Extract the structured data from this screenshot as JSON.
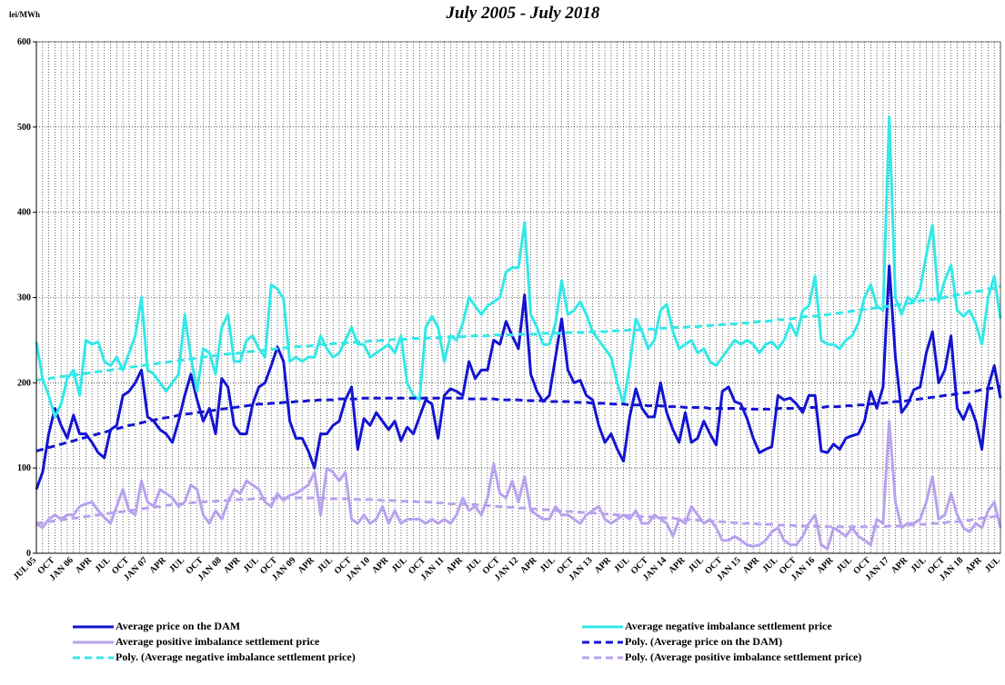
{
  "chart_data": {
    "type": "line",
    "title": "July 2005 - July 2018",
    "y_label": "lei/MWh",
    "categories": [
      "JUL 05",
      null,
      null,
      "OCT",
      null,
      null,
      "JAN 06",
      null,
      null,
      "APR",
      null,
      null,
      "JUL",
      null,
      null,
      "OCT",
      null,
      null,
      "JAN 07",
      null,
      null,
      "APR",
      null,
      null,
      "JUL",
      null,
      null,
      "OCT",
      null,
      null,
      "JAN 08",
      null,
      null,
      "APR",
      null,
      null,
      "JUL",
      null,
      null,
      "OCT",
      null,
      null,
      "JAN 09",
      null,
      null,
      "APR",
      null,
      null,
      "JUL",
      null,
      null,
      "OCT",
      null,
      null,
      "JAN 10",
      null,
      null,
      "APR",
      null,
      null,
      "JUL",
      null,
      null,
      "OCT",
      null,
      null,
      "JAN 11",
      null,
      null,
      "APR",
      null,
      null,
      "JUL",
      null,
      null,
      "OCT",
      null,
      null,
      "JAN 12",
      null,
      null,
      "APR",
      null,
      null,
      "JUL",
      null,
      null,
      "OCT",
      null,
      null,
      "JAN 13",
      null,
      null,
      "APR",
      null,
      null,
      "JUL",
      null,
      null,
      "OCT",
      null,
      null,
      "JAN 14",
      null,
      null,
      "APR",
      null,
      null,
      "JUL",
      null,
      null,
      "OCT",
      null,
      null,
      "JAN 15",
      null,
      null,
      "APR",
      null,
      null,
      "JUL",
      null,
      null,
      "OCT",
      null,
      null,
      "JAN 16",
      null,
      null,
      "APR",
      null,
      null,
      "JUL",
      null,
      null,
      "OCT",
      null,
      null,
      "JAN 17",
      null,
      null,
      "APR",
      null,
      null,
      "JUL",
      null,
      null,
      "OCT",
      null,
      null,
      "JAN 18",
      null,
      null,
      "APR",
      null,
      null,
      "JUL"
    ],
    "ylim": [
      0,
      600
    ],
    "yticks": [
      0,
      100,
      200,
      300,
      400,
      500,
      600
    ],
    "grid": true,
    "legend": "bottom",
    "series": [
      {
        "name": "Average price on the DAM",
        "color": "#1414d2",
        "style": "solid",
        "values": [
          75,
          95,
          140,
          170,
          150,
          135,
          162,
          140,
          140,
          130,
          118,
          112,
          145,
          150,
          185,
          190,
          200,
          215,
          160,
          155,
          145,
          140,
          130,
          155,
          185,
          210,
          180,
          155,
          170,
          140,
          205,
          195,
          150,
          140,
          140,
          175,
          195,
          200,
          220,
          242,
          225,
          155,
          135,
          135,
          120,
          100,
          140,
          140,
          150,
          155,
          180,
          195,
          122,
          158,
          150,
          165,
          155,
          145,
          155,
          132,
          148,
          140,
          160,
          180,
          175,
          135,
          185,
          193,
          190,
          185,
          225,
          205,
          215,
          215,
          250,
          245,
          272,
          255,
          240,
          303,
          210,
          190,
          178,
          185,
          230,
          275,
          215,
          200,
          203,
          185,
          180,
          150,
          130,
          140,
          122,
          108,
          160,
          193,
          170,
          160,
          160,
          200,
          165,
          145,
          130,
          165,
          130,
          135,
          155,
          140,
          127,
          190,
          195,
          178,
          175,
          158,
          135,
          118,
          122,
          125,
          185,
          180,
          182,
          175,
          165,
          185,
          185,
          120,
          118,
          128,
          122,
          135,
          138,
          140,
          155,
          190,
          170,
          195,
          337,
          230,
          165,
          175,
          192,
          195,
          235,
          260,
          200,
          215,
          255,
          170,
          157,
          175,
          155,
          122,
          195,
          220,
          182
        ]
      },
      {
        "name": "Average negative imbalance settlement price",
        "color": "#33e8e8",
        "style": "solid",
        "values": [
          248,
          205,
          185,
          160,
          175,
          205,
          215,
          185,
          250,
          245,
          248,
          225,
          220,
          230,
          215,
          235,
          255,
          300,
          215,
          210,
          200,
          190,
          200,
          210,
          280,
          230,
          190,
          240,
          235,
          210,
          265,
          280,
          225,
          225,
          250,
          255,
          240,
          230,
          315,
          310,
          298,
          225,
          230,
          225,
          230,
          230,
          255,
          240,
          230,
          235,
          250,
          265,
          245,
          245,
          230,
          235,
          240,
          245,
          235,
          255,
          200,
          185,
          180,
          265,
          278,
          265,
          225,
          255,
          250,
          270,
          300,
          290,
          280,
          290,
          295,
          300,
          330,
          335,
          335,
          388,
          280,
          265,
          245,
          245,
          270,
          320,
          280,
          285,
          295,
          280,
          260,
          250,
          240,
          230,
          200,
          175,
          220,
          275,
          260,
          240,
          250,
          285,
          292,
          260,
          240,
          245,
          250,
          235,
          240,
          225,
          220,
          230,
          240,
          250,
          245,
          250,
          245,
          235,
          245,
          248,
          240,
          250,
          270,
          255,
          285,
          290,
          325,
          250,
          245,
          245,
          240,
          250,
          255,
          270,
          300,
          315,
          290,
          285,
          512,
          300,
          280,
          300,
          295,
          310,
          350,
          385,
          295,
          320,
          338,
          285,
          278,
          285,
          270,
          245,
          300,
          325,
          275
        ]
      },
      {
        "name": "Average positive imbalance settlement price",
        "color": "#b8a2ee",
        "style": "solid",
        "values": [
          35,
          30,
          40,
          45,
          40,
          45,
          45,
          55,
          58,
          60,
          50,
          42,
          35,
          55,
          75,
          50,
          45,
          85,
          60,
          55,
          75,
          70,
          65,
          55,
          60,
          80,
          75,
          45,
          35,
          50,
          40,
          60,
          75,
          70,
          85,
          80,
          75,
          60,
          55,
          70,
          62,
          68,
          70,
          75,
          80,
          95,
          45,
          100,
          95,
          85,
          95,
          40,
          35,
          45,
          35,
          40,
          55,
          35,
          50,
          35,
          40,
          40,
          40,
          35,
          40,
          35,
          40,
          35,
          45,
          65,
          50,
          55,
          45,
          65,
          105,
          70,
          65,
          85,
          60,
          90,
          50,
          45,
          40,
          40,
          55,
          45,
          45,
          40,
          35,
          45,
          50,
          55,
          40,
          35,
          40,
          45,
          40,
          50,
          35,
          35,
          45,
          40,
          35,
          20,
          40,
          35,
          55,
          45,
          35,
          40,
          30,
          15,
          15,
          20,
          15,
          10,
          8,
          10,
          15,
          25,
          30,
          15,
          10,
          10,
          20,
          35,
          45,
          10,
          5,
          30,
          25,
          20,
          30,
          20,
          15,
          10,
          40,
          35,
          155,
          60,
          30,
          35,
          35,
          40,
          60,
          90,
          40,
          45,
          70,
          45,
          30,
          25,
          35,
          30,
          50,
          60,
          30
        ]
      },
      {
        "name": "Poly. (Average price on the DAM)",
        "color": "#1414d2",
        "style": "dashed",
        "values": [
          120,
          122,
          124,
          126,
          128,
          130,
          132,
          134,
          136,
          138,
          140,
          142,
          144,
          146,
          148,
          150,
          151,
          153,
          155,
          156,
          158,
          159,
          160,
          162,
          163,
          164,
          165,
          166,
          167,
          168,
          169,
          170,
          171,
          172,
          173,
          174,
          175,
          175,
          176,
          176,
          177,
          177,
          178,
          178,
          179,
          179,
          180,
          180,
          180,
          181,
          181,
          181,
          181,
          182,
          182,
          182,
          182,
          182,
          182,
          182,
          182,
          182,
          182,
          182,
          182,
          182,
          182,
          182,
          182,
          182,
          181,
          181,
          181,
          181,
          181,
          180,
          180,
          180,
          180,
          179,
          179,
          179,
          179,
          178,
          178,
          178,
          178,
          177,
          177,
          177,
          176,
          176,
          176,
          175,
          175,
          175,
          174,
          174,
          174,
          173,
          173,
          173,
          172,
          172,
          172,
          171,
          171,
          171,
          171,
          170,
          170,
          170,
          170,
          170,
          170,
          169,
          169,
          169,
          169,
          169,
          170,
          170,
          170,
          170,
          170,
          171,
          171,
          171,
          172,
          172,
          172,
          173,
          173,
          174,
          174,
          175,
          176,
          176,
          177,
          178,
          178,
          179,
          180,
          181,
          182,
          183,
          184,
          185,
          186,
          187,
          188,
          189,
          190,
          192,
          193,
          194,
          196
        ]
      },
      {
        "name": "Poly. (Average negative imbalance settlement price)",
        "color": "#33e8e8",
        "style": "dashed",
        "values": [
          203,
          204,
          205,
          206,
          207,
          208,
          209,
          210,
          211,
          212,
          213,
          214,
          215,
          216,
          217,
          218,
          219,
          220,
          221,
          222,
          223,
          224,
          225,
          226,
          227,
          228,
          229,
          230,
          231,
          232,
          233,
          234,
          234,
          235,
          236,
          237,
          238,
          238,
          239,
          240,
          241,
          241,
          242,
          243,
          243,
          244,
          245,
          245,
          246,
          246,
          247,
          247,
          248,
          248,
          249,
          249,
          250,
          250,
          251,
          251,
          251,
          252,
          252,
          252,
          253,
          253,
          253,
          254,
          254,
          254,
          255,
          255,
          255,
          255,
          256,
          256,
          256,
          256,
          257,
          257,
          257,
          257,
          258,
          258,
          258,
          258,
          259,
          259,
          259,
          259,
          260,
          260,
          260,
          261,
          261,
          261,
          262,
          262,
          262,
          263,
          263,
          264,
          264,
          265,
          265,
          265,
          266,
          266,
          267,
          267,
          268,
          268,
          269,
          269,
          270,
          270,
          271,
          272,
          272,
          273,
          274,
          274,
          275,
          276,
          277,
          278,
          278,
          279,
          280,
          281,
          282,
          283,
          284,
          285,
          286,
          287,
          288,
          289,
          290,
          291,
          292,
          293,
          294,
          296,
          297,
          298,
          299,
          300,
          302,
          303,
          304,
          306,
          307,
          308,
          310,
          311,
          313
        ]
      },
      {
        "name": "Poly. (Average positive imbalance settlement price)",
        "color": "#b8a2ee",
        "style": "dashed",
        "values": [
          35,
          36,
          37,
          38,
          39,
          40,
          41,
          42,
          43,
          44,
          45,
          46,
          47,
          48,
          49,
          50,
          51,
          52,
          53,
          54,
          55,
          56,
          57,
          58,
          58,
          59,
          60,
          60,
          61,
          61,
          62,
          62,
          63,
          63,
          63,
          64,
          64,
          64,
          64,
          65,
          65,
          65,
          65,
          65,
          65,
          65,
          65,
          64,
          64,
          64,
          64,
          64,
          63,
          63,
          63,
          63,
          62,
          62,
          62,
          61,
          61,
          61,
          60,
          60,
          60,
          59,
          59,
          58,
          58,
          58,
          57,
          57,
          56,
          56,
          55,
          55,
          54,
          54,
          53,
          53,
          52,
          52,
          51,
          51,
          50,
          50,
          49,
          49,
          48,
          48,
          47,
          47,
          46,
          46,
          45,
          45,
          44,
          44,
          43,
          43,
          42,
          42,
          41,
          41,
          40,
          40,
          39,
          39,
          38,
          38,
          37,
          37,
          36,
          36,
          35,
          35,
          35,
          34,
          34,
          34,
          33,
          33,
          33,
          32,
          32,
          32,
          32,
          31,
          31,
          31,
          31,
          31,
          31,
          31,
          31,
          31,
          31,
          31,
          32,
          32,
          32,
          33,
          33,
          34,
          34,
          35,
          35,
          36,
          37,
          37,
          38,
          39,
          40,
          41,
          42,
          43,
          44
        ]
      }
    ]
  }
}
